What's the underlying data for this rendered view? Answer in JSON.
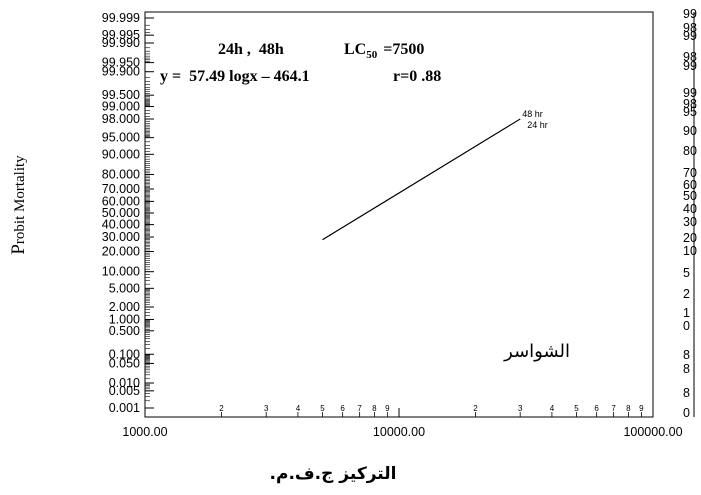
{
  "chart_data": {
    "type": "line",
    "header_line1": "24h ,  48h",
    "header_lc_main": "LC",
    "header_lc_sub": "50",
    "header_lc_value": "=7500",
    "equation": "y =  57.49 logx – 464.1",
    "correlation": "r=0 .88",
    "ylabel_cap": "P",
    "ylabel_rest": "robit Mortality",
    "xlabel": "التركيز ج.ف.م.",
    "annotation": "الشواسر",
    "xscale": "log",
    "xlim": [
      1000,
      100000
    ],
    "x_major_ticks": [
      {
        "value": 1000,
        "label": "1000.00"
      },
      {
        "value": 10000,
        "label": "10000.00"
      },
      {
        "value": 100000,
        "label": "100000.00"
      }
    ],
    "x_minor_ticks": [
      {
        "value": 2000,
        "label": "2"
      },
      {
        "value": 3000,
        "label": "3"
      },
      {
        "value": 4000,
        "label": "4"
      },
      {
        "value": 5000,
        "label": "5"
      },
      {
        "value": 6000,
        "label": "6"
      },
      {
        "value": 7000,
        "label": "7"
      },
      {
        "value": 8000,
        "label": "8"
      },
      {
        "value": 9000,
        "label": "9"
      },
      {
        "value": 20000,
        "label": "2"
      },
      {
        "value": 30000,
        "label": "3"
      },
      {
        "value": 40000,
        "label": "4"
      },
      {
        "value": 50000,
        "label": "5"
      },
      {
        "value": 60000,
        "label": "6"
      },
      {
        "value": 70000,
        "label": "7"
      },
      {
        "value": 80000,
        "label": "8"
      },
      {
        "value": 90000,
        "label": "9"
      }
    ],
    "yscale": "probit",
    "ylim": [
      0.001,
      99.999
    ],
    "y_ticks": [
      {
        "value": 99.999,
        "label": "99.999"
      },
      {
        "value": 99.995,
        "label": "99.995"
      },
      {
        "value": 99.99,
        "label": "99.990"
      },
      {
        "value": 99.95,
        "label": "99.950"
      },
      {
        "value": 99.9,
        "label": "99.900"
      },
      {
        "value": 99.5,
        "label": "99.500"
      },
      {
        "value": 99.0,
        "label": "99.000"
      },
      {
        "value": 98.0,
        "label": "98.000"
      },
      {
        "value": 95.0,
        "label": "95.000"
      },
      {
        "value": 90.0,
        "label": "90.000"
      },
      {
        "value": 80.0,
        "label": "80.000"
      },
      {
        "value": 70.0,
        "label": "70.000"
      },
      {
        "value": 60.0,
        "label": "60.000"
      },
      {
        "value": 50.0,
        "label": "50.000"
      },
      {
        "value": 40.0,
        "label": "40.000"
      },
      {
        "value": 30.0,
        "label": "30.000"
      },
      {
        "value": 20.0,
        "label": "20.000"
      },
      {
        "value": 10.0,
        "label": "10.000"
      },
      {
        "value": 5.0,
        "label": "5.000"
      },
      {
        "value": 2.0,
        "label": "2.000"
      },
      {
        "value": 1.0,
        "label": "1.000"
      },
      {
        "value": 0.5,
        "label": "0.500"
      },
      {
        "value": 0.1,
        "label": "0.100"
      },
      {
        "value": 0.05,
        "label": "0.050"
      },
      {
        "value": 0.01,
        "label": "0.010"
      },
      {
        "value": 0.005,
        "label": "0.005"
      },
      {
        "value": 0.001,
        "label": "0.001"
      }
    ],
    "right_partial_labels": [
      "99",
      "98",
      "99",
      "98",
      "99",
      "99",
      "98",
      "95",
      "90",
      "80",
      "70",
      "60",
      "50",
      "40",
      "30",
      "20",
      "10",
      "5",
      "2",
      "1",
      "0",
      "8",
      "8",
      "8",
      "0"
    ],
    "series": [
      {
        "name": "24 hr",
        "x": [
          5000,
          30000
        ],
        "y": [
          28,
          98
        ]
      },
      {
        "name": "48 hr",
        "x": [
          5000,
          30000
        ],
        "y": [
          28,
          98
        ]
      }
    ],
    "grid": false
  }
}
